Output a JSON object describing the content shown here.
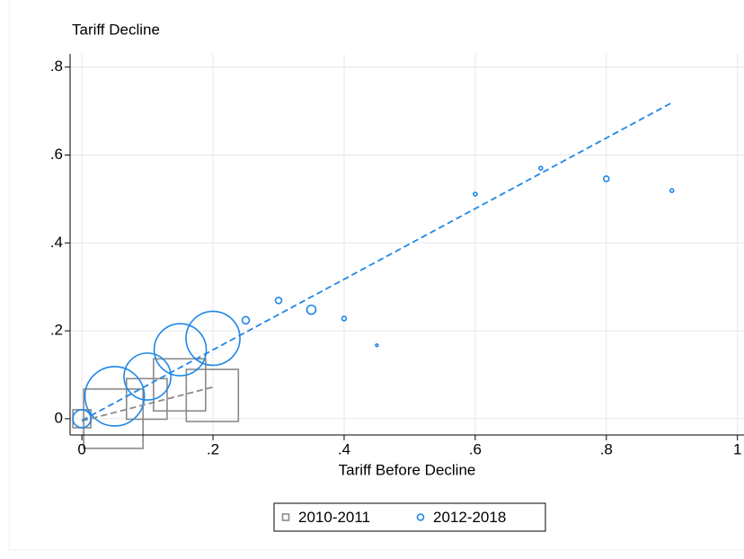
{
  "chart_data": {
    "type": "scatter",
    "y_label": "Tariff Decline",
    "x_label": "Tariff Before Decline",
    "xlim": [
      -0.018,
      1.01
    ],
    "ylim": [
      -0.037,
      0.83
    ],
    "xticks": [
      0,
      {
        "value": 0.2,
        "label": ".2"
      },
      {
        "value": 0.4,
        "label": ".4"
      },
      {
        "value": 0.6,
        "label": ".6"
      },
      {
        "value": 0.8,
        "label": ".8"
      },
      1
    ],
    "yticks": [
      0,
      {
        "value": 0.2,
        "label": ".2"
      },
      {
        "value": 0.4,
        "label": ".4"
      },
      {
        "value": 0.6,
        "label": ".6"
      },
      {
        "value": 0.8,
        "label": ".8"
      }
    ],
    "grid": true,
    "legend": "bottom",
    "series": [
      {
        "name": "2010-2011",
        "color": "#8a8a8a",
        "marker": "square",
        "x": [
          0,
          0.048,
          0.099,
          0.149,
          0.199
        ],
        "values": [
          0.0,
          0.0,
          0.045,
          0.077,
          0.053
        ],
        "sizes": [
          10,
          109,
          51,
          84,
          84
        ],
        "fit": {
          "x": [
            0,
            0.2
          ],
          "y": [
            -0.005,
            0.072
          ]
        }
      },
      {
        "name": "2012-2018",
        "color": "#1f87e8",
        "marker": "circle",
        "x": [
          0,
          0.05,
          0.1,
          0.15,
          0.2,
          0.25,
          0.3,
          0.35,
          0.4,
          0.45,
          0.6,
          0.7,
          0.8,
          0.9
        ],
        "values": [
          0.0,
          0.051,
          0.096,
          0.157,
          0.183,
          0.224,
          0.269,
          0.248,
          0.228,
          0.167,
          0.511,
          0.57,
          0.546,
          0.519
        ],
        "sizes": [
          10,
          109,
          68,
          84,
          90,
          1.6,
          1.2,
          2.5,
          0.6,
          0.2,
          0.4,
          0.4,
          0.9,
          0.4
        ],
        "fit": {
          "x": [
            0,
            0.9
          ],
          "y": [
            -0.004,
            0.719
          ]
        }
      }
    ]
  }
}
